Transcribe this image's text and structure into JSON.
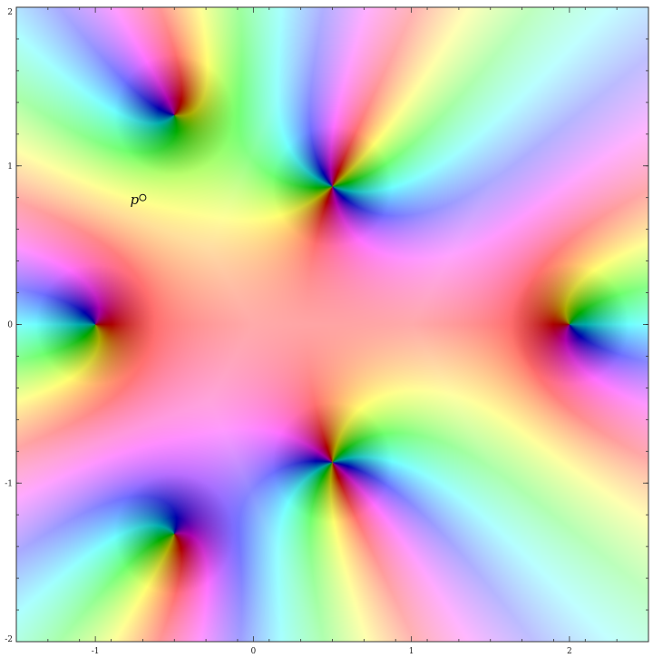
{
  "chart_data": {
    "type": "heatmap",
    "subtype": "complex-domain-coloring",
    "title": "",
    "xlabel": "",
    "ylabel": "",
    "xlim": [
      -1.5,
      2.5
    ],
    "ylim": [
      -2,
      2
    ],
    "xticks": [
      {
        "value": -1,
        "label": "-1"
      },
      {
        "value": 0,
        "label": "0"
      },
      {
        "value": 1,
        "label": "1"
      },
      {
        "value": 2,
        "label": "2"
      }
    ],
    "yticks": [
      {
        "value": 2,
        "label": "2"
      },
      {
        "value": 1,
        "label": "1"
      },
      {
        "value": 0,
        "label": "0"
      },
      {
        "value": -1,
        "label": "-1"
      },
      {
        "value": -2,
        "label": "-2"
      }
    ],
    "singular_points": [
      {
        "x": -0.5,
        "y": 1.32,
        "order": 1
      },
      {
        "x": 0.5,
        "y": 0.87,
        "order": 2
      },
      {
        "x": -1.0,
        "y": 0.0,
        "order": 1
      },
      {
        "x": 2.0,
        "y": 0.0,
        "order": 1
      },
      {
        "x": 0.5,
        "y": -0.87,
        "order": 2
      },
      {
        "x": -0.5,
        "y": -1.32,
        "order": 1
      }
    ],
    "annotation": {
      "text": "p",
      "x": -0.78,
      "y": 0.78
    },
    "marker": {
      "shape": "open-circle",
      "x": -0.7,
      "y": 0.8
    },
    "grid": false,
    "legend": "none"
  }
}
